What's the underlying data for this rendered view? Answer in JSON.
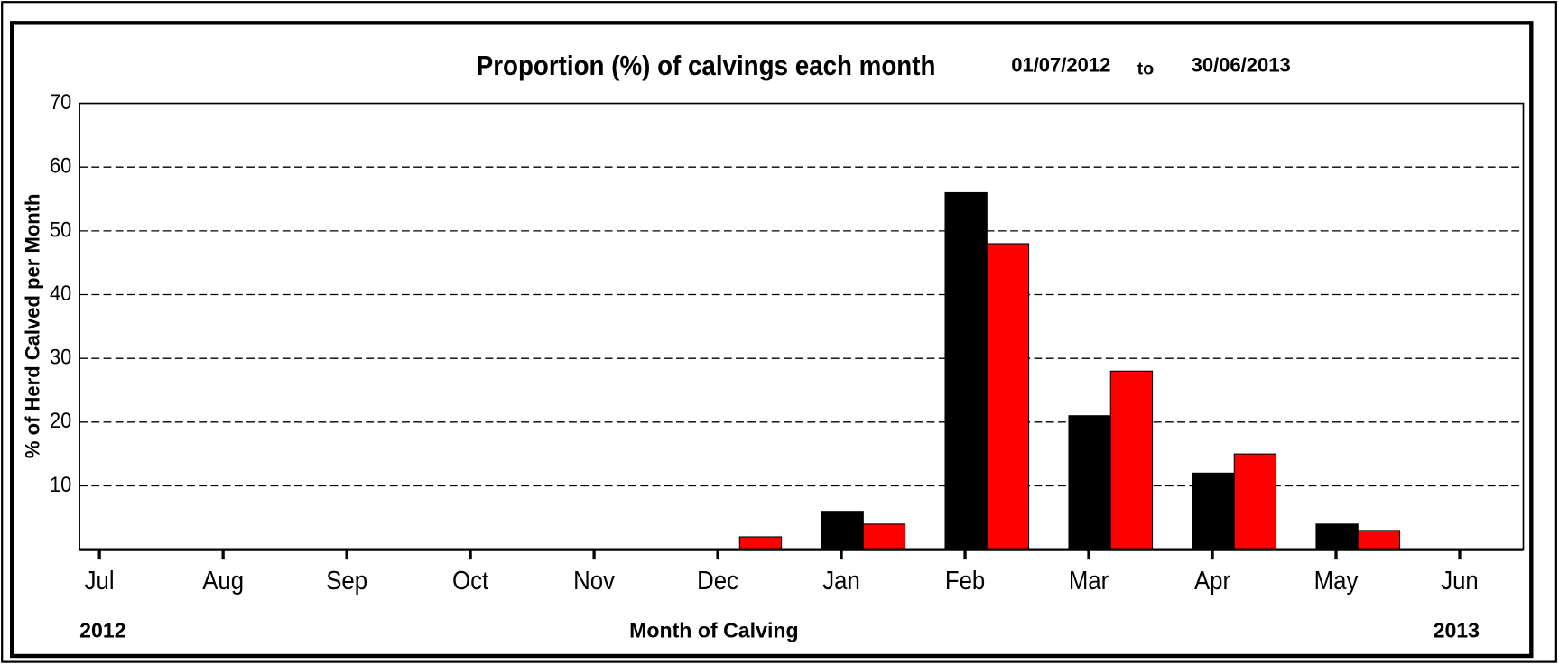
{
  "chart_data": {
    "type": "bar",
    "title": "Proportion (%) of calvings each month",
    "date_from": "01/07/2012",
    "date_sep": "to",
    "date_to": "30/06/2013",
    "y_label": "% of Herd Calved per Month",
    "x_label": "Month of Calving",
    "year_start": "2012",
    "year_end": "2013",
    "categories": [
      "Jul",
      "Aug",
      "Sep",
      "Oct",
      "Nov",
      "Dec",
      "Jan",
      "Feb",
      "Mar",
      "Apr",
      "May",
      "Jun"
    ],
    "series": [
      {
        "color": "#000000",
        "values": [
          0,
          0,
          0,
          0,
          0,
          0,
          6,
          56,
          21,
          12,
          4,
          0
        ]
      },
      {
        "color": "#ff0000",
        "values": [
          0,
          0,
          0,
          0,
          0,
          2,
          4,
          48,
          28,
          15,
          3,
          0
        ]
      }
    ],
    "ylim": [
      0,
      70
    ],
    "yticks": [
      10,
      20,
      30,
      40,
      50,
      60,
      70
    ],
    "grid": true
  }
}
